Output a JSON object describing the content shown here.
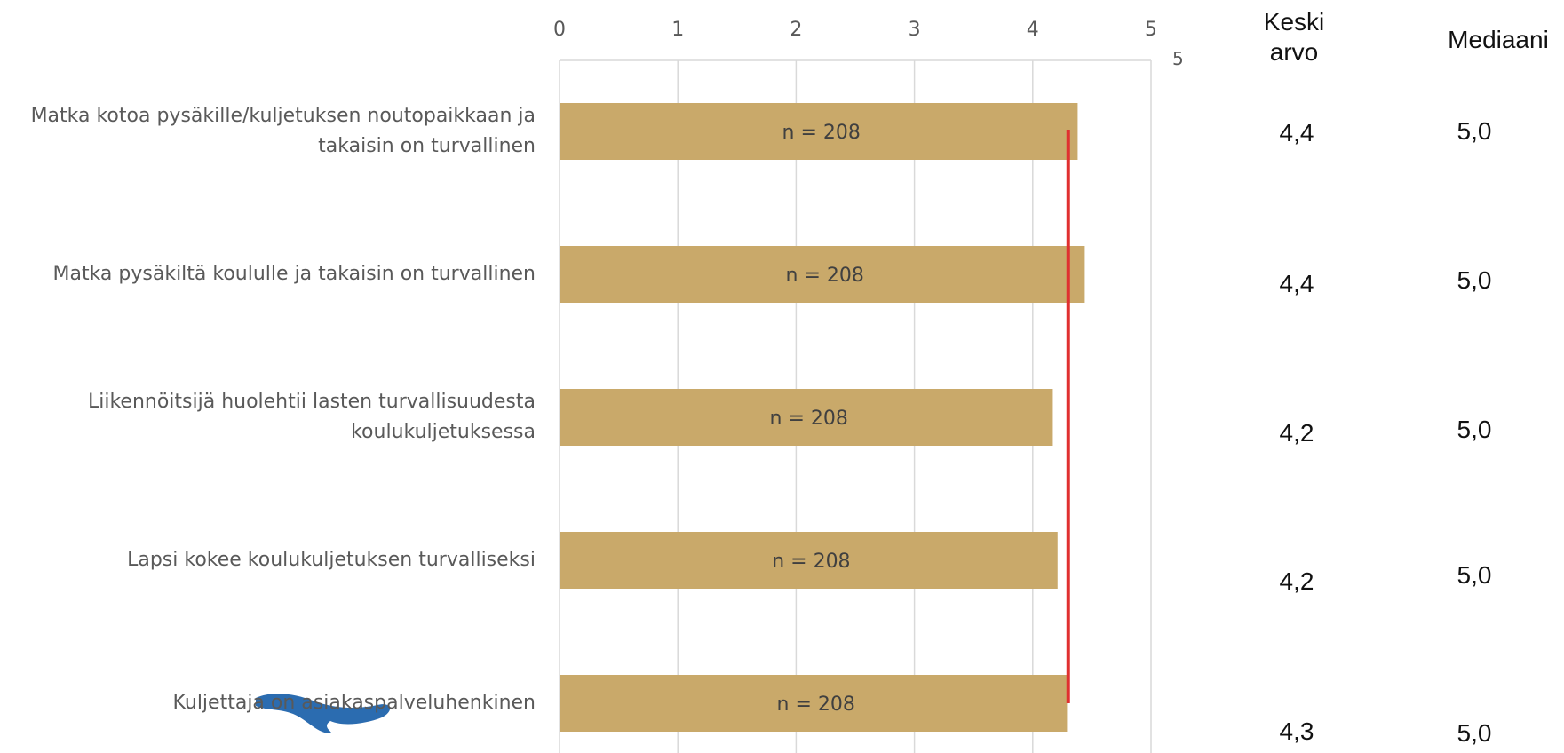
{
  "chart_data": {
    "type": "bar",
    "orientation": "horizontal",
    "categories": [
      "Matka kotoa pysäkille/kuljetuksen noutopaikkaan ja takaisin on turvallinen",
      "Matka pysäkiltä koululle ja takaisin on turvallinen",
      "Liikennöitsijä huolehtii lasten turvallisuudesta koulukuljetuksessa",
      "Lapsi kokee koulukuljetuksen turvalliseksi",
      "Kuljettaja on asiakaspalveluhenkinen"
    ],
    "category_lines": [
      [
        "Matka kotoa pysäkille/kuljetuksen noutopaikkaan ja",
        "takaisin on turvallinen"
      ],
      [
        "Matka pysäkiltä koululle ja takaisin on turvallinen"
      ],
      [
        "Liikennöitsijä huolehtii lasten turvallisuudesta",
        "koulukuljetuksessa"
      ],
      [
        "Lapsi kokee koulukuljetuksen turvalliseksi"
      ],
      [
        "Kuljettaja on asiakaspalveluhenkinen"
      ]
    ],
    "values": [
      4.38,
      4.44,
      4.17,
      4.21,
      4.29
    ],
    "bar_labels": [
      "n = 208",
      "n = 208",
      "n = 208",
      "n = 208",
      "n = 208"
    ],
    "reference_line": 4.3,
    "xlim": [
      0,
      5
    ],
    "x_ticks": [
      "0",
      "1",
      "2",
      "3",
      "4",
      "5"
    ],
    "axis_position": "top",
    "grid": true,
    "bar_color": "#c9a96a",
    "reference_line_color": "#e03030"
  },
  "stray_tick": "5",
  "table": {
    "mean_header": [
      "Keski",
      "arvo"
    ],
    "median_header": "Mediaani",
    "mean_values": [
      "4,4",
      "4,4",
      "4,2",
      "4,2",
      "4,3"
    ],
    "median_values": [
      "5,0",
      "5,0",
      "5,0",
      "5,0",
      "5,0"
    ]
  },
  "scribble_color": "#2b6cb0"
}
